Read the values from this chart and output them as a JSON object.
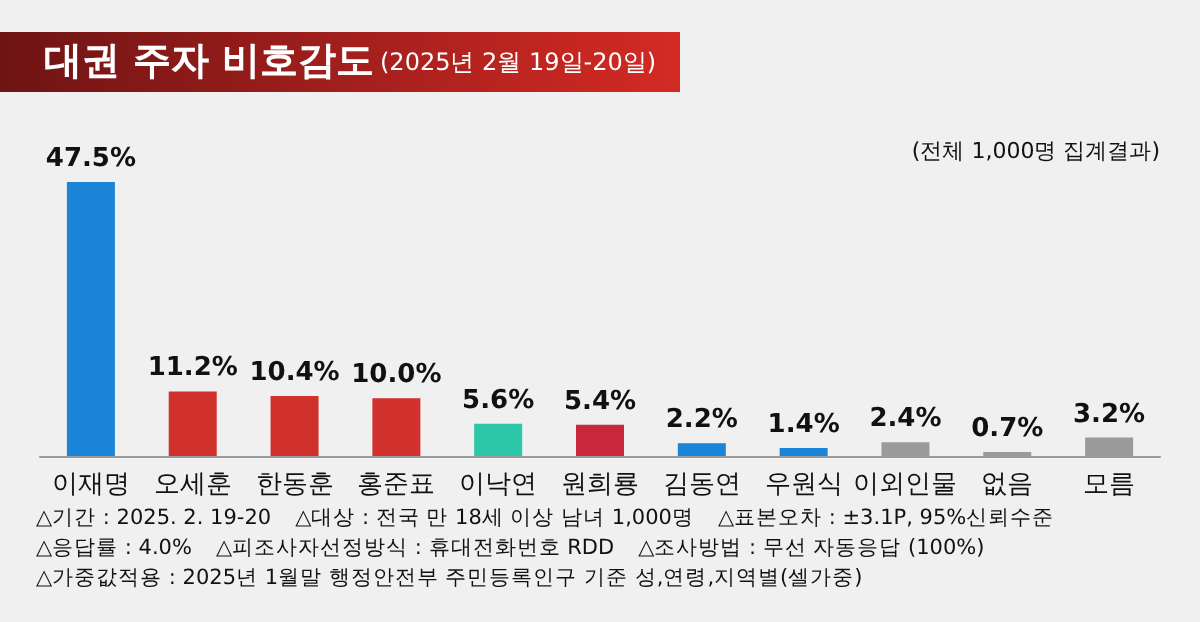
{
  "chart_data": {
    "type": "bar",
    "title": "대권 주자 비호감도",
    "subtitle": "(2025년 2월 19일-20일)",
    "categories": [
      "이재명",
      "오세훈",
      "한동훈",
      "홍준표",
      "이낙연",
      "원희룡",
      "김동연",
      "우원식",
      "이외인물",
      "없음",
      "모름"
    ],
    "values": [
      47.5,
      11.2,
      10.4,
      10.0,
      5.6,
      5.4,
      2.2,
      1.4,
      2.4,
      0.7,
      3.2
    ],
    "value_labels": [
      "47.5%",
      "11.2%",
      "10.4%",
      "10.0%",
      "5.6%",
      "5.4%",
      "2.2%",
      "1.4%",
      "2.4%",
      "0.7%",
      "3.2%"
    ],
    "colors": [
      "#1a84d8",
      "#d0312d",
      "#d0312d",
      "#d0312d",
      "#2cc6a8",
      "#c8283a",
      "#1a84d8",
      "#1a84d8",
      "#9a9a9a",
      "#9a9a9a",
      "#9a9a9a"
    ],
    "annotations": [
      "(전체 1,000명 집계결과)",
      "△기간 : 2025. 2. 19-20",
      "△대상 : 전국 만 18세 이상 남녀 1,000명",
      "△표본오차 : ±3.1P, 95%신뢰수준",
      "△응답률 : 4.0%",
      "△피조사자선정방식 : 휴대전화번호 RDD",
      "△조사방법 : 무선 자동응답 (100%)",
      "△가중값적용 : 2025년 1월말 행정안전부 주민등록인구 기준 성,연령,지역별(셀가중)"
    ],
    "grid": false
  }
}
